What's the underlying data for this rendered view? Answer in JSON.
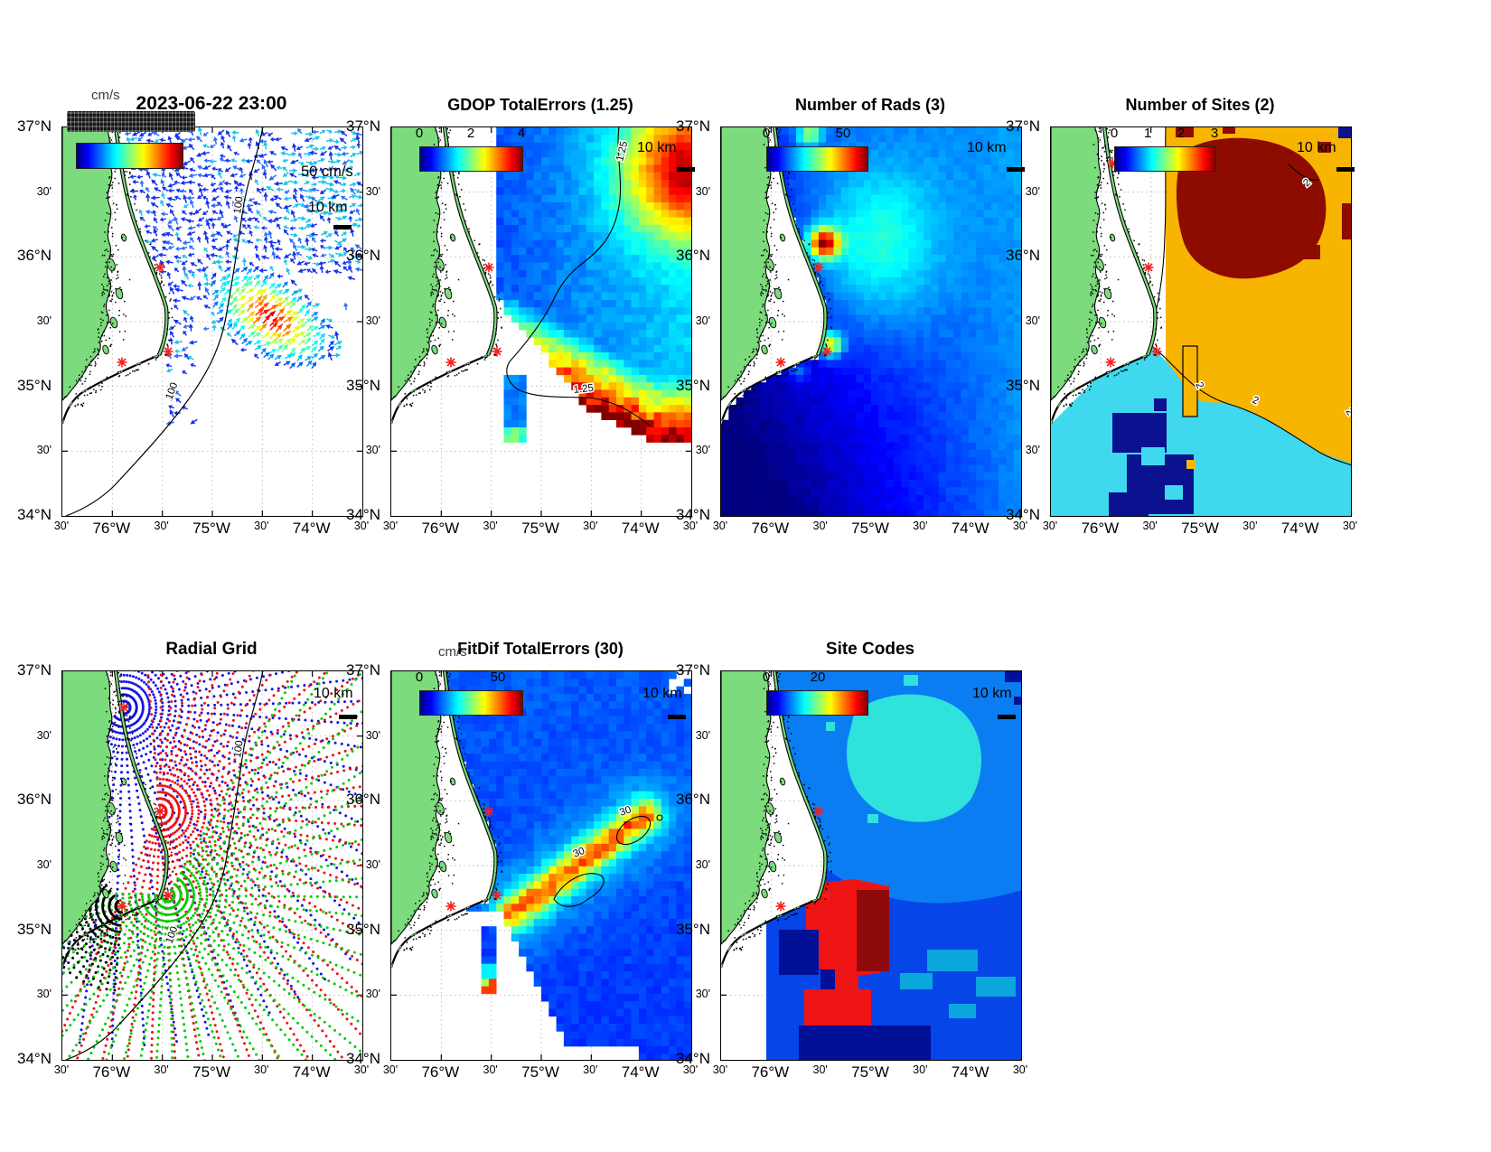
{
  "axes": {
    "x_tick_labels": [
      "30'",
      "76°W",
      "30'",
      "75°W",
      "30'",
      "74°W",
      "30'"
    ],
    "y_tick_labels": [
      "37°N",
      "30'",
      "36°N",
      "30'",
      "35°N",
      "30'",
      "34°N"
    ],
    "lon_span": "76.5°W to 73.5°W",
    "lat_span": "34°N to 37°N"
  },
  "map": {
    "region": "North Carolina Outer Banks / Cape Hatteras coastal ocean",
    "land_color": "#7CDB7C",
    "sea_color": "#FFFFFF",
    "site_marker": "red asterisk",
    "radar_sites_lonlat": [
      [
        -75.84,
        36.7
      ],
      [
        -75.51,
        35.91
      ],
      [
        -75.42,
        35.25
      ],
      [
        -75.91,
        35.12
      ]
    ],
    "depth_contour_level_m": 100
  },
  "chart_data": [
    {
      "type": "vector",
      "title": "2023-06-22 23:00",
      "colorbar": {
        "label": "cm/s",
        "range": [
          0,
          50
        ],
        "tick_labels_note": "overlapping illegible tick text",
        "colormap": "jet"
      },
      "reference_vector_label": "50 cm/s",
      "scale_bar_label": "10 km",
      "contour": {
        "level": 100,
        "label": "100"
      },
      "summary": "Surface current vectors: weak blue vectors over most of the shelf; strong northeastward Gulf Stream jet with dark-red core near 35.5N 75W surrounded by yellow-cyan fringe; cyan vectors along the eastern edge."
    },
    {
      "type": "heatmap",
      "title": "GDOP TotalErrors (1.25)",
      "colorbar": {
        "range": [
          0,
          4
        ],
        "tick_labels": [
          "0",
          "2",
          "4"
        ],
        "colormap": "jet"
      },
      "scale_bar_label": "10 km",
      "contour": {
        "level": 1.25,
        "label": "1.25"
      },
      "summary": "GDOP ~0.8-1.5 (blue) across the coverage interior, rising through green/yellow to red/dark-red (>3) along the southern and northeastern coverage edges; small detached blue strip near 75.5W 34.9N."
    },
    {
      "type": "heatmap",
      "title": "Number of Rads (3)",
      "colorbar": {
        "range": [
          0,
          50
        ],
        "tick_labels": [
          "0",
          "50"
        ],
        "colormap": "jet"
      },
      "scale_bar_label": "10 km",
      "summary": "Radial counts 5-20 (blue) over most of the domain, darkest (near 0) in the southwest corner, with maxima ~45-50 (yellow/red) just offshore of two radar sites on the barrier islands."
    },
    {
      "type": "heatmap",
      "title": "Number of Sites (2)",
      "colorbar": {
        "range": [
          0,
          3
        ],
        "tick_labels": [
          "0",
          "1",
          "2",
          "3"
        ],
        "colormap": "jet"
      },
      "scale_bar_label": "10 km",
      "contour": {
        "level": 2,
        "label": "2"
      },
      "summary": "Discrete field: 2 sites (orange) over most of the domain, 3 sites (dark red) in a large north-central blob, ~1.5 (cyan) nearshore and in the south, 1 (dark navy) patches in the southwest corner."
    },
    {
      "type": "scatter",
      "title": "Radial Grid",
      "scale_bar_label": "10 km",
      "contour": {
        "level": 100,
        "label": "100"
      },
      "series": [
        {
          "name": "northern site radial grid",
          "color": "blue"
        },
        {
          "name": "central site radial grid",
          "color": "red"
        },
        {
          "name": "southern site radial grid",
          "color": "green"
        },
        {
          "name": "southwestern site radial grid",
          "color": "black"
        }
      ],
      "summary": "Polar measurement grids (range rings and bearing spokes) fanning seaward from four radar sites marked by red asterisks."
    },
    {
      "type": "heatmap",
      "title": "FitDif TotalErrors (30)",
      "colorbar": {
        "label": "cm/s",
        "range": [
          0,
          50
        ],
        "tick_labels": [
          "0",
          "50"
        ],
        "colormap": "jet"
      },
      "scale_bar_label": "10 km",
      "contour": {
        "level": 30,
        "label": "30"
      },
      "summary": "Fit-difference errors 5-15 cm/s (blue) over most of the domain with a cyan-green-yellow ridge reaching ~35 cm/s along the Gulf Stream front; two closed 30 cm/s contours; small detached multicolor strip nearshore."
    },
    {
      "type": "heatmap",
      "title": "Site Codes",
      "colorbar": {
        "range": [
          0,
          20
        ],
        "tick_labels": [
          "0",
          "20"
        ],
        "colormap": "jet"
      },
      "scale_bar_label": "10 km",
      "summary": "Discrete site-code regions: light-blue northern region containing a bright cyan blob, royal-blue south/east region with teal patches, red and dark-red patches nearshore in the southwest, dark navy patches along the southwest corner."
    }
  ]
}
